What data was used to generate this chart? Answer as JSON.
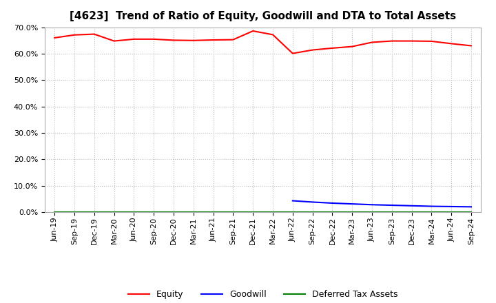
{
  "title": "[4623]  Trend of Ratio of Equity, Goodwill and DTA to Total Assets",
  "x_labels": [
    "Jun-19",
    "Sep-19",
    "Dec-19",
    "Mar-20",
    "Jun-20",
    "Sep-20",
    "Dec-20",
    "Mar-21",
    "Jun-21",
    "Sep-21",
    "Dec-21",
    "Mar-22",
    "Jun-22",
    "Sep-22",
    "Dec-22",
    "Mar-23",
    "Jun-23",
    "Sep-23",
    "Dec-23",
    "Mar-24",
    "Jun-24",
    "Sep-24"
  ],
  "equity": [
    0.66,
    0.671,
    0.674,
    0.648,
    0.655,
    0.655,
    0.651,
    0.65,
    0.652,
    0.653,
    0.686,
    0.672,
    0.601,
    0.614,
    0.621,
    0.627,
    0.643,
    0.648,
    0.648,
    0.647,
    0.638,
    0.63
  ],
  "goodwill": [
    null,
    null,
    null,
    null,
    null,
    null,
    null,
    null,
    null,
    null,
    null,
    null,
    0.043,
    0.038,
    0.034,
    0.031,
    0.028,
    0.026,
    0.024,
    0.022,
    0.021,
    0.02
  ],
  "dta": [
    null,
    null,
    null,
    null,
    null,
    null,
    null,
    null,
    null,
    null,
    null,
    null,
    null,
    null,
    null,
    null,
    null,
    null,
    null,
    null,
    null,
    null
  ],
  "equity_color": "#FF0000",
  "goodwill_color": "#0000FF",
  "dta_color": "#008000",
  "bg_color": "#FFFFFF",
  "grid_color": "#BBBBBB",
  "ylim": [
    0.0,
    0.7
  ],
  "yticks": [
    0.0,
    0.1,
    0.2,
    0.3,
    0.4,
    0.5,
    0.6,
    0.7
  ],
  "legend_labels": [
    "Equity",
    "Goodwill",
    "Deferred Tax Assets"
  ],
  "title_fontsize": 11,
  "axis_fontsize": 8,
  "legend_fontsize": 9
}
